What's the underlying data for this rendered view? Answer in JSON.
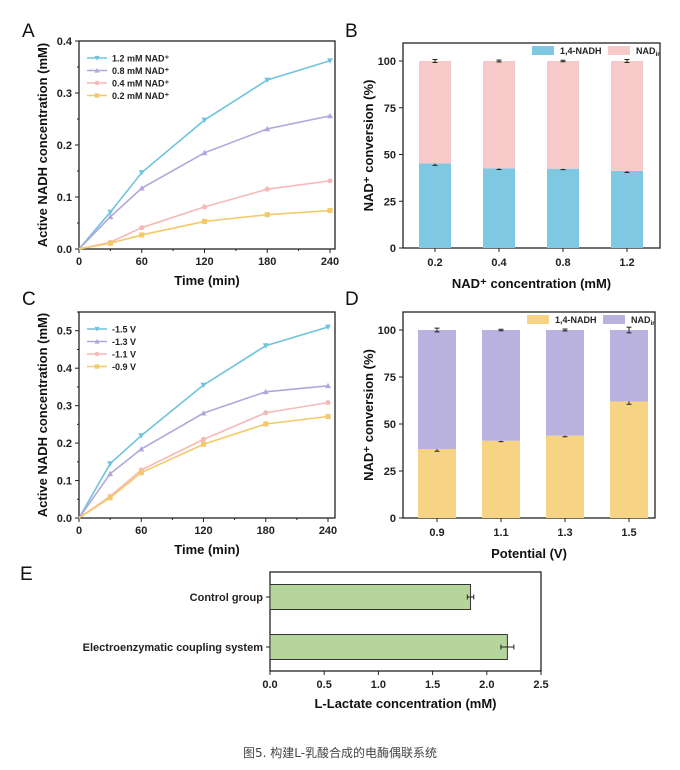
{
  "caption": "图5. 构建L-乳酸合成的电酶偶联系统",
  "chart_data": [
    {
      "panel": "A",
      "type": "line",
      "xlabel": "Time (min)",
      "ylabel": "Active NADH concentration (mM)",
      "x": [
        0,
        30,
        60,
        120,
        180,
        240
      ],
      "xticks": [
        0,
        60,
        120,
        180,
        240
      ],
      "xlim": [
        0,
        240
      ],
      "yticks": [
        0.0,
        0.1,
        0.2,
        0.3,
        0.4
      ],
      "ytick_labels": [
        "0.0",
        "0.1",
        "0.2",
        "0.3",
        "0.4"
      ],
      "ylim": [
        0,
        0.4
      ],
      "legend": "top-left",
      "series": [
        {
          "name": "1.2 mM NAD⁺",
          "color": "#6fc3dd",
          "marker": "triangle-down",
          "values": [
            0,
            0.071,
            0.147,
            0.248,
            0.325,
            0.362
          ]
        },
        {
          "name": "0.8 mM NAD⁺",
          "color": "#b2a7dd",
          "marker": "triangle-up",
          "values": [
            0,
            0.062,
            0.117,
            0.185,
            0.231,
            0.256
          ]
        },
        {
          "name": "0.4 mM NAD⁺",
          "color": "#f5b9b9",
          "marker": "circle",
          "values": [
            0,
            0.013,
            0.041,
            0.081,
            0.115,
            0.131
          ]
        },
        {
          "name": "0.2 mM NAD⁺",
          "color": "#f4c96a",
          "marker": "square",
          "values": [
            0,
            0.011,
            0.027,
            0.053,
            0.066,
            0.074
          ]
        }
      ]
    },
    {
      "panel": "B",
      "type": "bar",
      "stacked": true,
      "xlabel": "NAD⁺ concentration (mM)",
      "ylabel": "NAD⁺ conversion (%)",
      "categories": [
        "0.2",
        "0.4",
        "0.8",
        "1.2"
      ],
      "yticks": [
        0,
        25,
        50,
        75,
        100
      ],
      "ylim": [
        0,
        110
      ],
      "legend": "top-right",
      "series": [
        {
          "name": "1,4-NADH",
          "color": "#7ec8e2",
          "values": [
            45.2,
            42.6,
            42.4,
            41.2
          ],
          "errors": [
            1.0,
            0.6,
            0.5,
            0.8
          ]
        },
        {
          "name": "NAD",
          "name_sub": "ir",
          "color": "#f8c9c9",
          "values": [
            54.8,
            57.4,
            57.6,
            58.8
          ],
          "errors": [
            0.8,
            0.5,
            0.4,
            0.8
          ]
        }
      ]
    },
    {
      "panel": "C",
      "type": "line",
      "xlabel": "Time (min)",
      "ylabel": "Active NADH concentration (mM)",
      "x": [
        0,
        30,
        60,
        120,
        180,
        240
      ],
      "xticks": [
        0,
        60,
        120,
        180,
        240
      ],
      "xlim": [
        0,
        240
      ],
      "yticks": [
        0.0,
        0.1,
        0.2,
        0.3,
        0.4,
        0.5
      ],
      "ytick_labels": [
        "0.0",
        "0.1",
        "0.2",
        "0.3",
        "0.4",
        "0.5"
      ],
      "ylim": [
        0,
        0.55
      ],
      "legend": "top-left",
      "series": [
        {
          "name": "-1.5 V",
          "color": "#6fc3dd",
          "marker": "triangle-down",
          "values": [
            0,
            0.145,
            0.22,
            0.355,
            0.46,
            0.51
          ]
        },
        {
          "name": "-1.3 V",
          "color": "#b2a7dd",
          "marker": "triangle-up",
          "values": [
            0,
            0.118,
            0.184,
            0.28,
            0.337,
            0.353
          ]
        },
        {
          "name": "-1.1 V",
          "color": "#f5b9b9",
          "marker": "circle",
          "values": [
            0,
            0.058,
            0.128,
            0.21,
            0.281,
            0.308
          ]
        },
        {
          "name": "-0.9 V",
          "color": "#f4c96a",
          "marker": "square",
          "values": [
            0,
            0.054,
            0.121,
            0.197,
            0.251,
            0.271
          ]
        }
      ]
    },
    {
      "panel": "D",
      "type": "bar",
      "stacked": true,
      "xlabel": "Potential (V)",
      "ylabel": "NAD⁺ conversion (%)",
      "categories": [
        "0.9",
        "1.1",
        "1.3",
        "1.5"
      ],
      "yticks": [
        0,
        25,
        50,
        75,
        100
      ],
      "ylim": [
        0,
        110
      ],
      "legend": "top-right",
      "series": [
        {
          "name": "1,4-NADH",
          "color": "#f6d483",
          "values": [
            36.7,
            41.1,
            43.8,
            62.0
          ],
          "errors": [
            1.2,
            0.5,
            0.6,
            1.5
          ]
        },
        {
          "name": "NAD",
          "name_sub": "ir",
          "color": "#b9b1de",
          "values": [
            63.3,
            58.9,
            56.2,
            38.0
          ],
          "errors": [
            1.0,
            0.4,
            0.5,
            1.5
          ]
        }
      ]
    },
    {
      "panel": "E",
      "type": "bar",
      "orientation": "horizontal",
      "xlabel": "L-Lactate concentration (mM)",
      "categories": [
        "Control group",
        "Electroenzymatic coupling system"
      ],
      "xticks": [
        0.0,
        0.5,
        1.0,
        1.5,
        2.0,
        2.5
      ],
      "xtick_labels": [
        "0.0",
        "0.5",
        "1.0",
        "1.5",
        "2.0",
        "2.5"
      ],
      "xlim": [
        0,
        2.5
      ],
      "series": [
        {
          "color": "#b5d59d",
          "values": [
            1.85,
            2.19
          ],
          "errors": [
            0.03,
            0.06
          ]
        }
      ]
    }
  ]
}
